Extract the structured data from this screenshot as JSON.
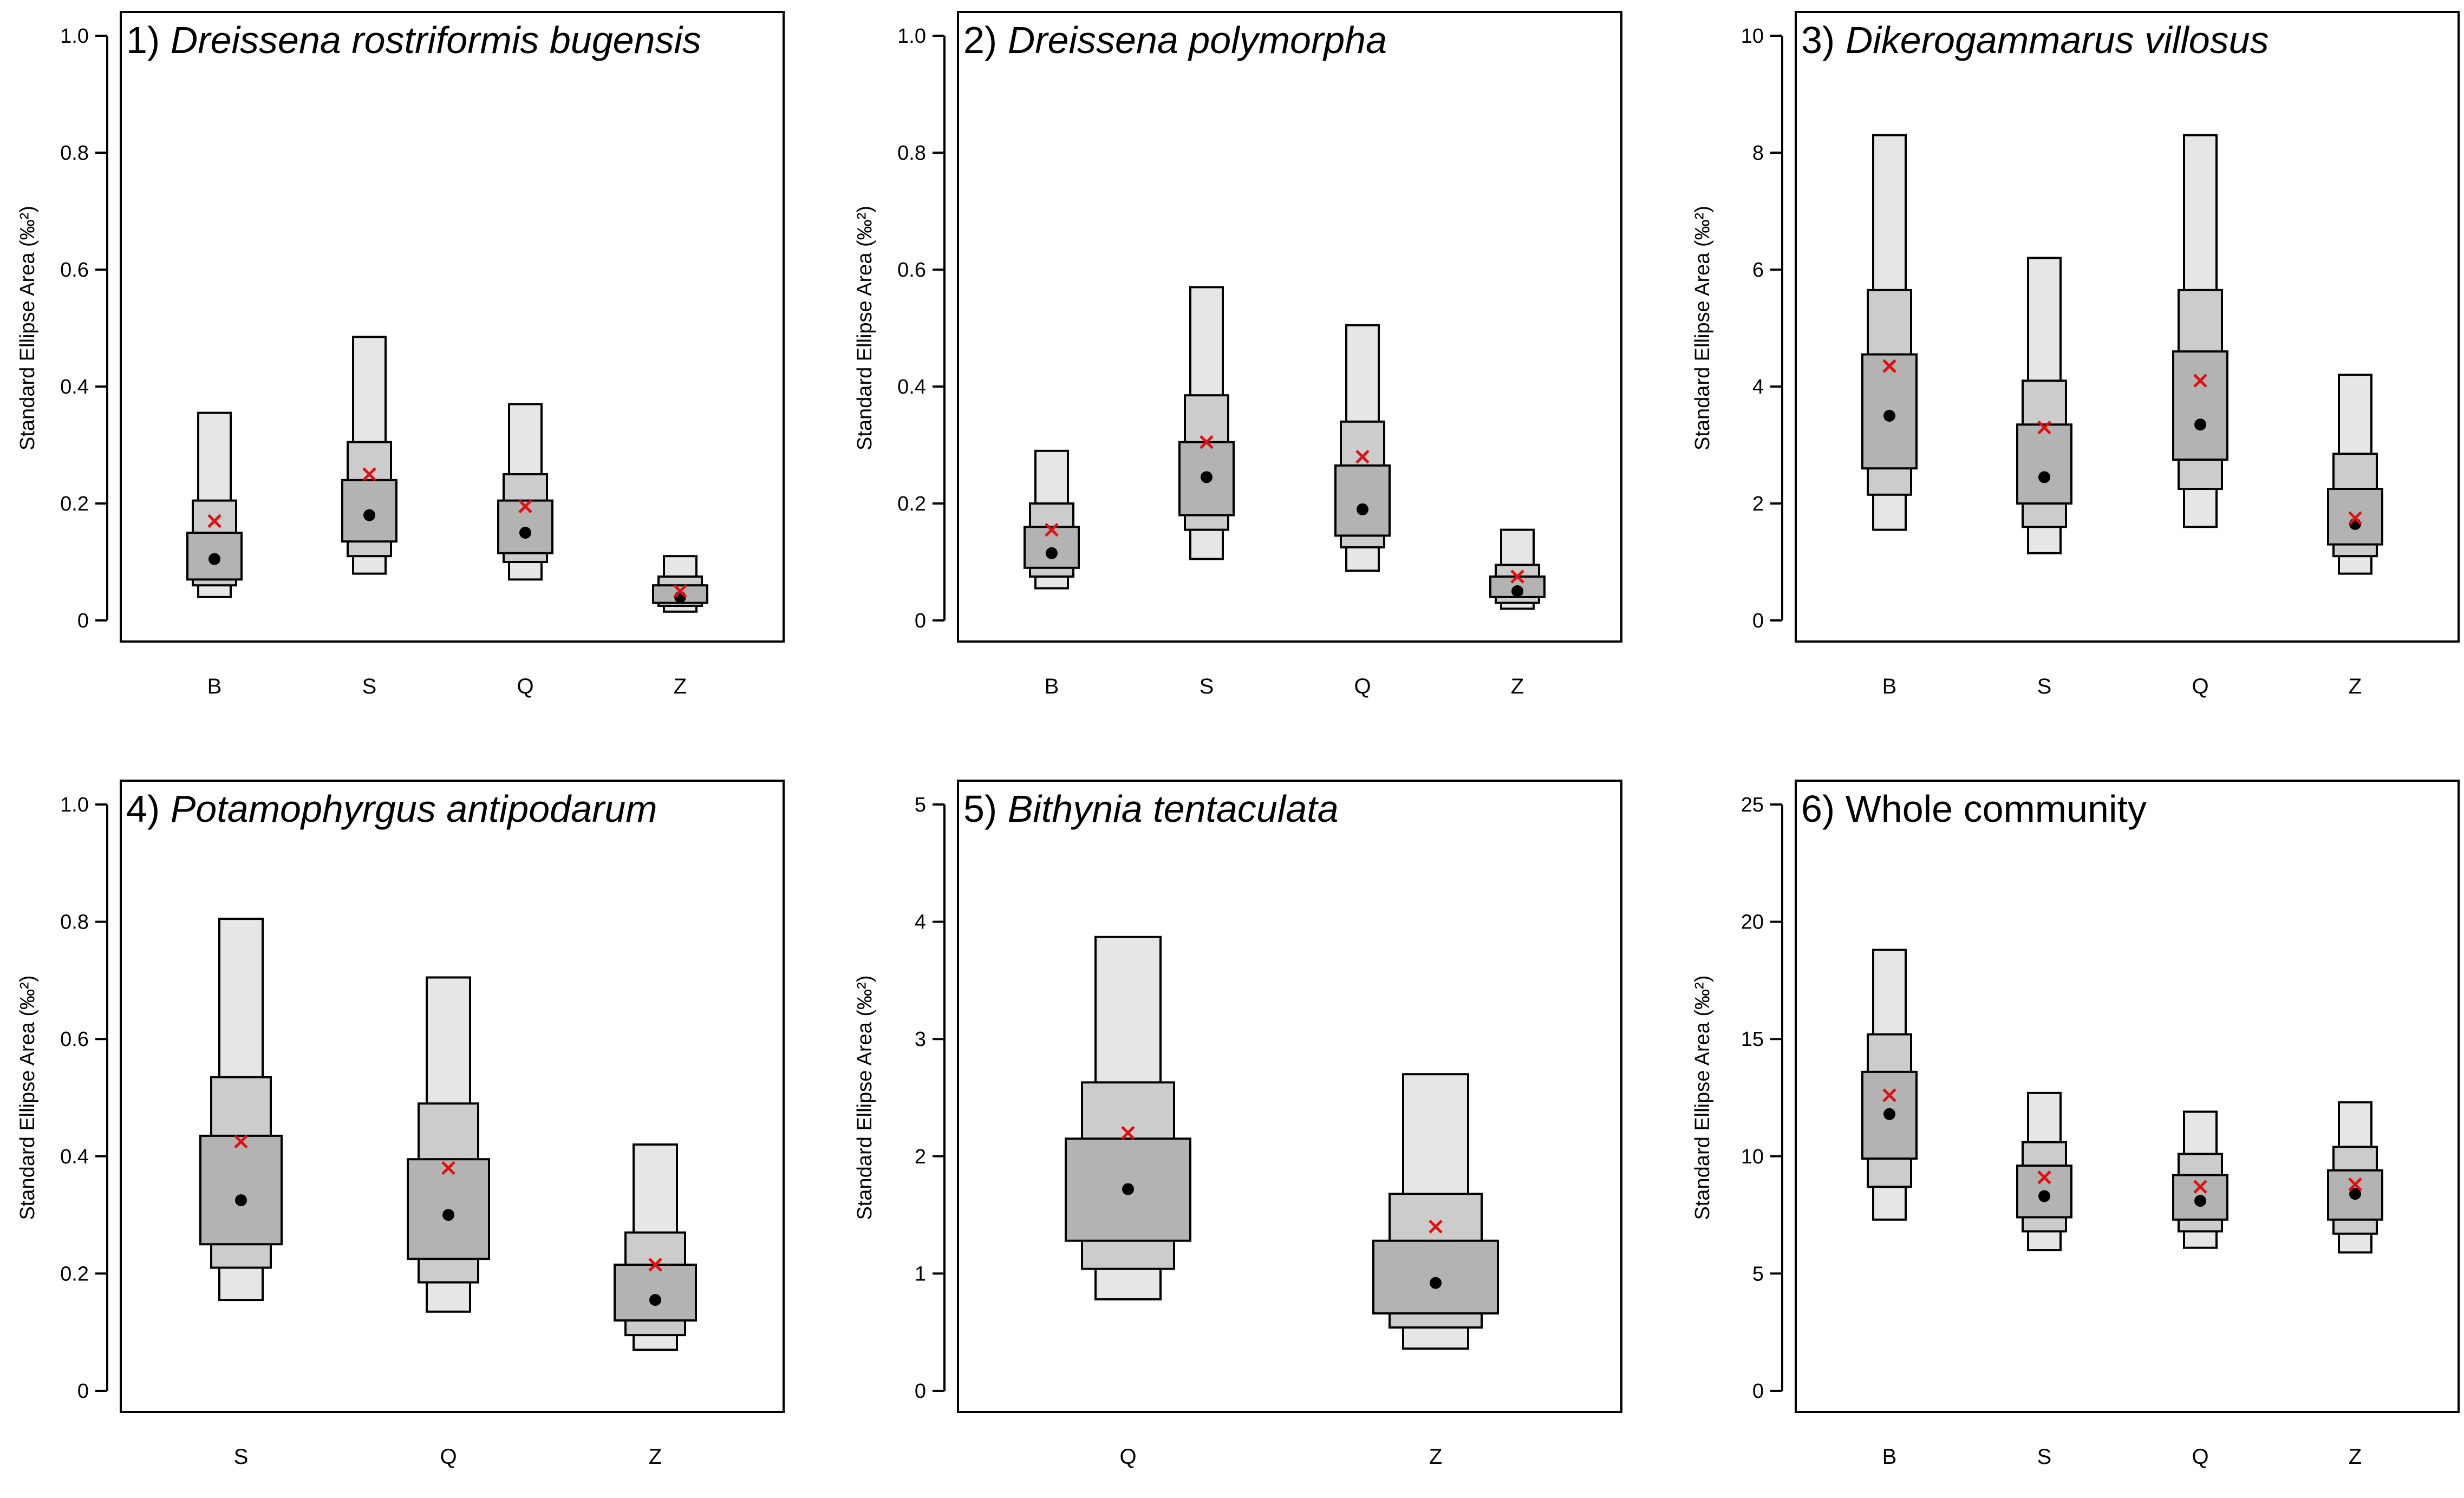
{
  "chart_data": [
    {
      "type": "box",
      "panel_number": "1)",
      "title": "Dreissena rostriformis bugensis",
      "title_italic": true,
      "ylabel": "Standard Ellipse Area (‰²)",
      "ylim": [
        0,
        1.0
      ],
      "yticks": [
        "0",
        "0.2",
        "0.4",
        "0.6",
        "0.8",
        "1.0"
      ],
      "categories": [
        "B",
        "S",
        "Q",
        "Z"
      ],
      "credible_intervals": {
        "ci95": [
          [
            0.04,
            0.355
          ],
          [
            0.08,
            0.485
          ],
          [
            0.07,
            0.37
          ],
          [
            0.015,
            0.11
          ]
        ],
        "ci75": [
          [
            0.06,
            0.205
          ],
          [
            0.11,
            0.305
          ],
          [
            0.1,
            0.25
          ],
          [
            0.025,
            0.075
          ]
        ],
        "ci50": [
          [
            0.07,
            0.15
          ],
          [
            0.135,
            0.24
          ],
          [
            0.115,
            0.205
          ],
          [
            0.03,
            0.06
          ]
        ]
      },
      "mode": [
        0.105,
        0.18,
        0.15,
        0.04
      ],
      "mean": [
        0.17,
        0.25,
        0.195,
        0.05
      ]
    },
    {
      "type": "box",
      "panel_number": "2)",
      "title": "Dreissena polymorpha",
      "title_italic": true,
      "ylabel": "Standard Ellipse Area (‰²)",
      "ylim": [
        0,
        1.0
      ],
      "yticks": [
        "0",
        "0.2",
        "0.4",
        "0.6",
        "0.8",
        "1.0"
      ],
      "categories": [
        "B",
        "S",
        "Q",
        "Z"
      ],
      "credible_intervals": {
        "ci95": [
          [
            0.055,
            0.29
          ],
          [
            0.105,
            0.57
          ],
          [
            0.085,
            0.505
          ],
          [
            0.02,
            0.155
          ]
        ],
        "ci75": [
          [
            0.075,
            0.2
          ],
          [
            0.155,
            0.385
          ],
          [
            0.125,
            0.34
          ],
          [
            0.03,
            0.095
          ]
        ],
        "ci50": [
          [
            0.09,
            0.16
          ],
          [
            0.18,
            0.305
          ],
          [
            0.145,
            0.265
          ],
          [
            0.04,
            0.075
          ]
        ]
      },
      "mode": [
        0.115,
        0.245,
        0.19,
        0.05
      ],
      "mean": [
        0.155,
        0.305,
        0.28,
        0.075
      ]
    },
    {
      "type": "box",
      "panel_number": "3)",
      "title": "Dikerogammarus villosus",
      "title_italic": true,
      "ylabel": "Standard Ellipse Area (‰²)",
      "ylim": [
        0,
        10
      ],
      "yticks": [
        "0",
        "2",
        "4",
        "6",
        "8",
        "10"
      ],
      "categories": [
        "B",
        "S",
        "Q",
        "Z"
      ],
      "credible_intervals": {
        "ci95": [
          [
            1.55,
            8.3
          ],
          [
            1.15,
            6.2
          ],
          [
            1.6,
            8.3
          ],
          [
            0.8,
            4.2
          ]
        ],
        "ci75": [
          [
            2.15,
            5.65
          ],
          [
            1.6,
            4.1
          ],
          [
            2.25,
            5.65
          ],
          [
            1.1,
            2.85
          ]
        ],
        "ci50": [
          [
            2.6,
            4.55
          ],
          [
            2.0,
            3.35
          ],
          [
            2.75,
            4.6
          ],
          [
            1.3,
            2.25
          ]
        ]
      },
      "mode": [
        3.5,
        2.45,
        3.35,
        1.65
      ],
      "mean": [
        4.35,
        3.3,
        4.1,
        1.75
      ]
    },
    {
      "type": "box",
      "panel_number": "4)",
      "title": "Potamophyrgus antipodarum",
      "title_italic": true,
      "ylabel": "Standard Ellipse Area (‰²)",
      "ylim": [
        0,
        1.0
      ],
      "yticks": [
        "0",
        "0.2",
        "0.4",
        "0.6",
        "0.8",
        "1.0"
      ],
      "categories": [
        "S",
        "Q",
        "Z"
      ],
      "credible_intervals": {
        "ci95": [
          [
            0.155,
            0.805
          ],
          [
            0.135,
            0.705
          ],
          [
            0.07,
            0.42
          ]
        ],
        "ci75": [
          [
            0.21,
            0.535
          ],
          [
            0.185,
            0.49
          ],
          [
            0.095,
            0.27
          ]
        ],
        "ci50": [
          [
            0.25,
            0.435
          ],
          [
            0.225,
            0.395
          ],
          [
            0.12,
            0.215
          ]
        ]
      },
      "mode": [
        0.325,
        0.3,
        0.155
      ],
      "mean": [
        0.425,
        0.38,
        0.215
      ]
    },
    {
      "type": "box",
      "panel_number": "5)",
      "title": "Bithynia tentaculata",
      "title_italic": true,
      "ylabel": "Standard Ellipse Area (‰²)",
      "ylim": [
        0,
        5
      ],
      "yticks": [
        "0",
        "1",
        "2",
        "3",
        "4",
        "5"
      ],
      "categories": [
        "Q",
        "Z"
      ],
      "credible_intervals": {
        "ci95": [
          [
            0.78,
            3.87
          ],
          [
            0.36,
            2.7
          ]
        ],
        "ci75": [
          [
            1.04,
            2.63
          ],
          [
            0.54,
            1.68
          ]
        ],
        "ci50": [
          [
            1.28,
            2.15
          ],
          [
            0.66,
            1.28
          ]
        ]
      },
      "mode": [
        1.72,
        0.92
      ],
      "mean": [
        2.2,
        1.4
      ]
    },
    {
      "type": "box",
      "panel_number": "6)",
      "title": "Whole community",
      "title_italic": false,
      "ylabel": "Standard Ellipse Area (‰²)",
      "ylim": [
        0,
        25
      ],
      "yticks": [
        "0",
        "5",
        "10",
        "15",
        "20",
        "25"
      ],
      "categories": [
        "B",
        "S",
        "Q",
        "Z"
      ],
      "credible_intervals": {
        "ci95": [
          [
            7.3,
            18.8
          ],
          [
            6.0,
            12.7
          ],
          [
            6.1,
            11.9
          ],
          [
            5.9,
            12.3
          ]
        ],
        "ci75": [
          [
            8.7,
            15.2
          ],
          [
            6.8,
            10.6
          ],
          [
            6.8,
            10.1
          ],
          [
            6.7,
            10.4
          ]
        ],
        "ci50": [
          [
            9.9,
            13.6
          ],
          [
            7.4,
            9.6
          ],
          [
            7.3,
            9.2
          ],
          [
            7.3,
            9.4
          ]
        ]
      },
      "mode": [
        11.8,
        8.3,
        8.1,
        8.4
      ],
      "mean": [
        12.6,
        9.1,
        8.7,
        8.8
      ]
    }
  ]
}
